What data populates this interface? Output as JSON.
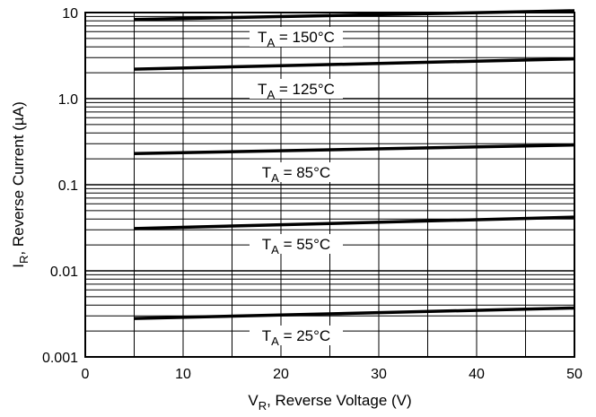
{
  "chart_data": {
    "type": "line",
    "title": "",
    "xlabel": {
      "main": "V",
      "sub": "R",
      "rest": ", Reverse Voltage (V)"
    },
    "ylabel": {
      "main": "I",
      "sub": "R",
      "rest": ", Reverse Current (µA)"
    },
    "xlim": [
      0,
      50
    ],
    "ylim": [
      0.001,
      10
    ],
    "yscale": "log",
    "grid": true,
    "xticks": [
      {
        "value": 0,
        "label": "0"
      },
      {
        "value": 10,
        "label": "10"
      },
      {
        "value": 20,
        "label": "20"
      },
      {
        "value": 30,
        "label": "30"
      },
      {
        "value": 40,
        "label": "40"
      },
      {
        "value": 50,
        "label": "50"
      }
    ],
    "yticks": [
      {
        "value": 0.001,
        "label": "0.001"
      },
      {
        "value": 0.01,
        "label": "0.01"
      },
      {
        "value": 0.1,
        "label": "0.1"
      },
      {
        "value": 1,
        "label": "1.0"
      },
      {
        "value": 10,
        "label": "10"
      }
    ],
    "series": [
      {
        "name": "150°C",
        "x": [
          5,
          50
        ],
        "values": [
          8.3,
          10.5
        ]
      },
      {
        "name": "125°C",
        "x": [
          5,
          50
        ],
        "values": [
          2.2,
          2.9
        ]
      },
      {
        "name": "85°C",
        "x": [
          5,
          50
        ],
        "values": [
          0.23,
          0.29
        ]
      },
      {
        "name": "55°C",
        "x": [
          5,
          50
        ],
        "values": [
          0.031,
          0.042
        ]
      },
      {
        "name": "25°C",
        "x": [
          5,
          50
        ],
        "values": [
          0.0028,
          0.0037
        ]
      }
    ],
    "annotations": [
      {
        "sub": "A",
        "text": " = 150°C"
      },
      {
        "sub": "A",
        "text": " = 125°C"
      },
      {
        "sub": "A",
        "text": " = 85°C"
      },
      {
        "sub": "A",
        "text": " = 55°C"
      },
      {
        "sub": "A",
        "text": " = 25°C"
      }
    ],
    "annotation_prefix": "T"
  }
}
